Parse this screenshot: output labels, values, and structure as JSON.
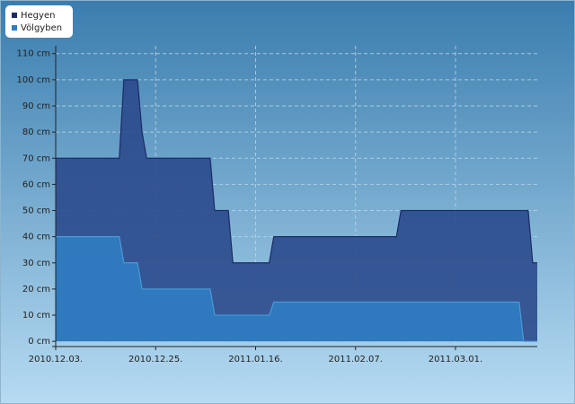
{
  "chart_data": {
    "type": "area",
    "series": [
      {
        "name": "Hegyen",
        "color": "#2b4a8c",
        "line_color": "#1b2c66",
        "x": [
          "2010-12-03",
          "2010-12-17",
          "2010-12-18",
          "2010-12-21",
          "2010-12-22",
          "2010-12-23",
          "2011-01-06",
          "2011-01-07",
          "2011-01-10",
          "2011-01-11",
          "2011-01-19",
          "2011-01-20",
          "2011-02-16",
          "2011-02-17",
          "2011-03-17",
          "2011-03-18",
          "2011-03-19"
        ],
        "values": [
          70,
          70,
          100,
          100,
          80,
          70,
          70,
          50,
          50,
          30,
          30,
          40,
          40,
          50,
          50,
          30,
          30
        ]
      },
      {
        "name": "Völgyben",
        "color": "#2f7dc2",
        "line_color": "#4a9ad8",
        "x": [
          "2010-12-03",
          "2010-12-17",
          "2010-12-18",
          "2010-12-21",
          "2010-12-22",
          "2011-01-06",
          "2011-01-07",
          "2011-01-19",
          "2011-01-20",
          "2011-03-15",
          "2011-03-16",
          "2011-03-19"
        ],
        "values": [
          40,
          40,
          30,
          30,
          20,
          20,
          10,
          10,
          15,
          15,
          0,
          0
        ]
      }
    ],
    "xlim": [
      "2010-12-03",
      "2011-03-19"
    ],
    "xticks": [
      {
        "value": "2010-12-03",
        "label": "2010.12.03."
      },
      {
        "value": "2010-12-25",
        "label": "2010.12.25."
      },
      {
        "value": "2011-01-16",
        "label": "2011.01.16."
      },
      {
        "value": "2011-02-07",
        "label": "2011.02.07."
      },
      {
        "value": "2011-03-01",
        "label": "2011.03.01."
      }
    ],
    "ylim": [
      -2,
      113
    ],
    "yticks": [
      {
        "value": 0,
        "label": "0 cm"
      },
      {
        "value": 10,
        "label": "10 cm"
      },
      {
        "value": 20,
        "label": "20 cm"
      },
      {
        "value": 30,
        "label": "30 cm"
      },
      {
        "value": 40,
        "label": "40 cm"
      },
      {
        "value": 50,
        "label": "50 cm"
      },
      {
        "value": 60,
        "label": "60 cm"
      },
      {
        "value": 70,
        "label": "70 cm"
      },
      {
        "value": 80,
        "label": "80 cm"
      },
      {
        "value": 90,
        "label": "90 cm"
      },
      {
        "value": 100,
        "label": "100 cm"
      },
      {
        "value": 110,
        "label": "110 cm"
      }
    ],
    "grid": true
  }
}
